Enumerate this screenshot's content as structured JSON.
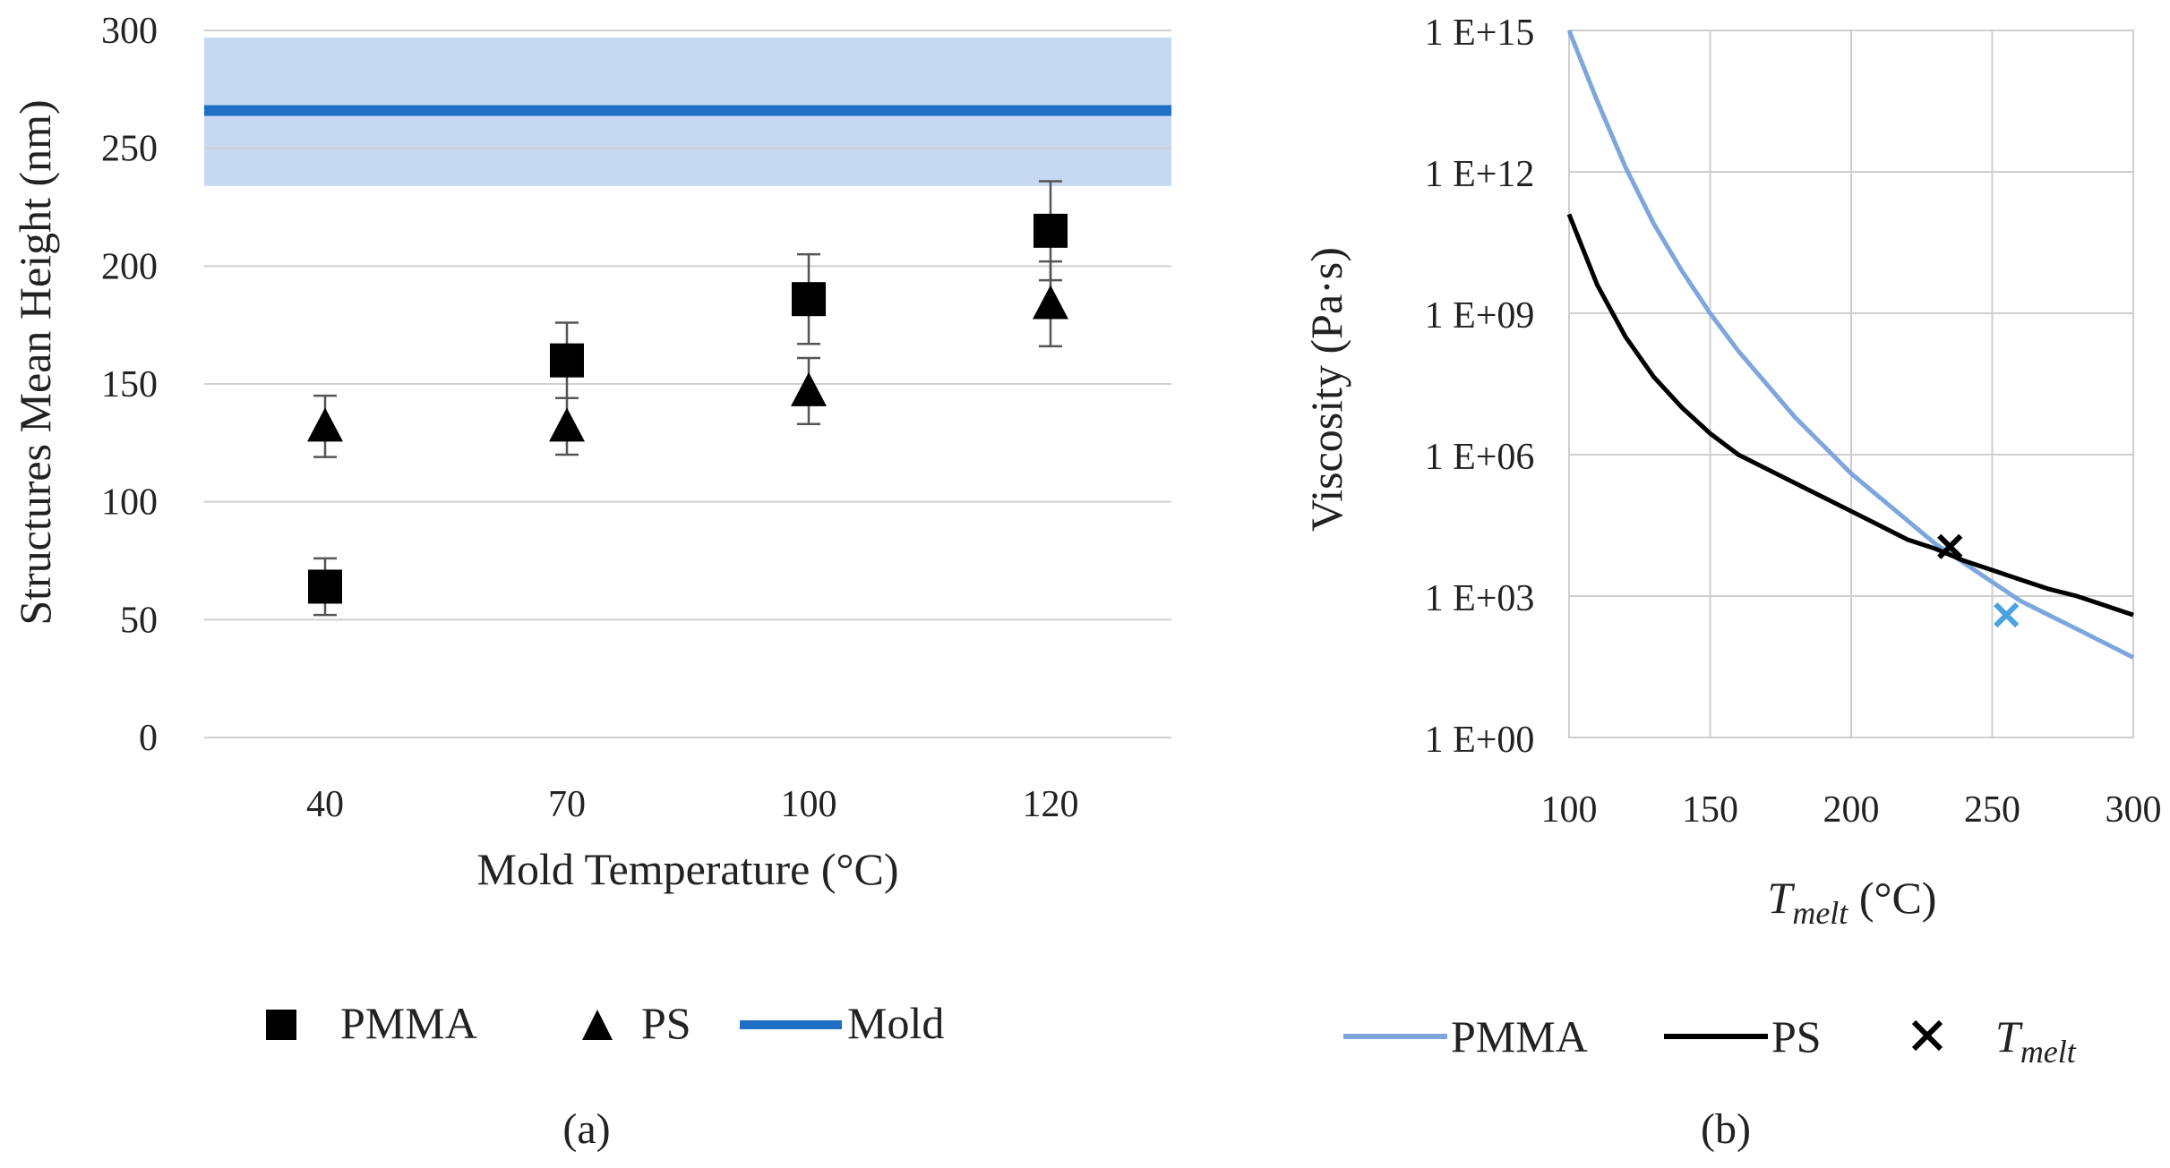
{
  "chart_data": [
    {
      "type": "scatter",
      "panel_label": "(a)",
      "xlabel": "Mold Temperature (°C)",
      "ylabel": "Structures Mean Height (nm)",
      "categories": [
        "40",
        "70",
        "100",
        "120"
      ],
      "ylim": [
        0,
        300
      ],
      "yticks": [
        "0",
        "50",
        "100",
        "150",
        "200",
        "250",
        "300"
      ],
      "grid": true,
      "legend_position": "bottom",
      "series": [
        {
          "name": "PMMA",
          "marker": "square",
          "color": "#000000",
          "values": [
            64,
            160,
            186,
            215
          ],
          "error": [
            12,
            16,
            19,
            21
          ]
        },
        {
          "name": "PS",
          "marker": "triangle",
          "color": "#000000",
          "values": [
            132,
            132,
            147,
            184
          ],
          "error": [
            13,
            12,
            14,
            18
          ]
        },
        {
          "name": "Mold",
          "type": "line",
          "color": "#1f6fc5",
          "value": 266,
          "band": [
            234,
            297
          ],
          "band_color": "#c7d9f2"
        }
      ]
    },
    {
      "type": "line",
      "panel_label": "(b)",
      "xlabel_main": "T",
      "xlabel_sub": "melt",
      "xlabel_unit": " (°C)",
      "ylabel": "Viscosity (Pa·s)",
      "xlim": [
        100,
        300
      ],
      "xticks": [
        "100",
        "150",
        "200",
        "250",
        "300"
      ],
      "y_scale": "log",
      "ylim": [
        1,
        1000000000000000.0
      ],
      "yticks": [
        "1 E+00",
        "1 E+03",
        "1 E+06",
        "1 E+09",
        "1 E+12",
        "1 E+15"
      ],
      "grid": true,
      "legend_position": "bottom",
      "series": [
        {
          "name": "PMMA",
          "color": "#7fa6dc",
          "x": [
            100,
            110,
            120,
            130,
            140,
            150,
            160,
            170,
            180,
            190,
            200,
            210,
            220,
            230,
            240,
            250,
            260,
            270,
            280,
            290,
            300
          ],
          "y": [
            1000000000000000.0,
            31600000000000.0,
            1260000000000.0,
            79400000000.0,
            7940000000.0,
            1000000000.0,
            158000000.0,
            31600000.0,
            6310000.0,
            1580000.0,
            398000.0,
            126000.0,
            39800.0,
            12600.0,
            5010.0,
            1990.0,
            794.0,
            398.0,
            200.0,
            100.0,
            50.1
          ]
        },
        {
          "name": "PS",
          "color": "#000000",
          "x": [
            100,
            110,
            120,
            130,
            140,
            150,
            160,
            170,
            180,
            190,
            200,
            210,
            220,
            230,
            240,
            250,
            260,
            270,
            280,
            290,
            300
          ],
          "y": [
            126000000000.0,
            3980000000.0,
            316000000.0,
            44700000.0,
            10000000.0,
            2820000.0,
            1000000.0,
            501000.0,
            251000.0,
            126000.0,
            63100.0,
            31600.0,
            15800.0,
            10000.0,
            5620.0,
            3550.0,
            2240.0,
            1410.0,
            1000.0,
            631.0,
            398.0
          ]
        }
      ],
      "markers": [
        {
          "name": "T",
          "name_sub": "melt",
          "symbol": "x",
          "color": "#000000",
          "x": 235,
          "y": 11200.0
        },
        {
          "symbol": "x",
          "color": "#4aa3df",
          "x": 255,
          "y": 398.0
        }
      ]
    }
  ]
}
